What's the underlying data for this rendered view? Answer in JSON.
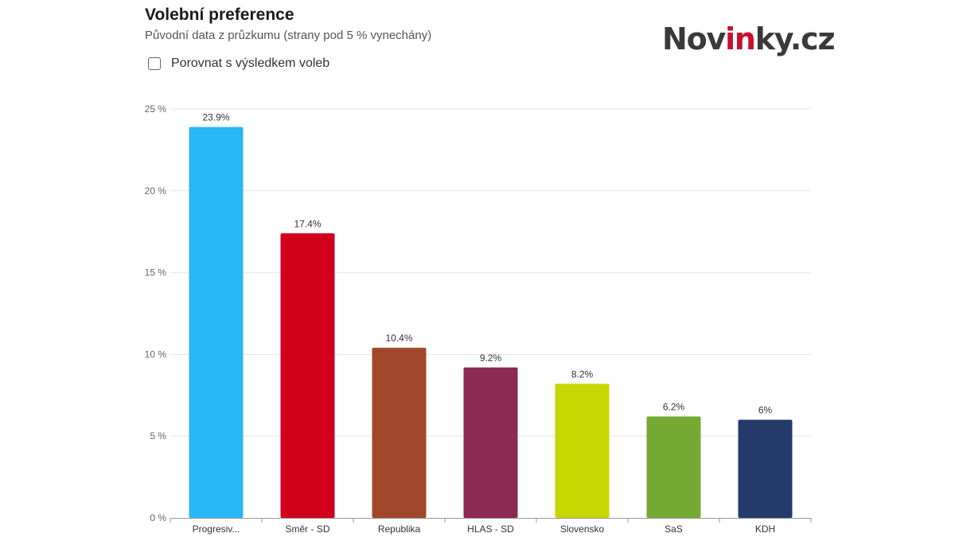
{
  "header": {
    "title": "Volební preference",
    "subtitle": "Původní data z průzkumu (strany pod 5 % vynechány)"
  },
  "compare": {
    "label": "Porovnat s výsledkem voleb",
    "checked": false
  },
  "logo": {
    "part1": "Nov",
    "part2": "in",
    "part3": "ky.cz",
    "accent_color": "#c8102e"
  },
  "chart_data": {
    "type": "bar",
    "title": "",
    "xlabel": "",
    "ylabel": "",
    "ylim": [
      0,
      25
    ],
    "yticks": [
      0,
      5,
      10,
      15,
      20,
      25
    ],
    "ytick_suffix": " %",
    "grid": true,
    "categories": [
      "Progresiv...",
      "Směr - SD",
      "Republika",
      "HLAS - SD",
      "Slovensko",
      "SaS",
      "KDH"
    ],
    "values": [
      23.9,
      17.4,
      10.4,
      9.2,
      8.2,
      6.2,
      6
    ],
    "data_labels": [
      "23.9%",
      "17.4%",
      "10.4%",
      "9.2%",
      "8.2%",
      "6.2%",
      "6%"
    ],
    "colors": [
      "#29b6f6",
      "#d0021b",
      "#a0472b",
      "#8b2a52",
      "#c5d600",
      "#76a933",
      "#243a6b"
    ]
  }
}
